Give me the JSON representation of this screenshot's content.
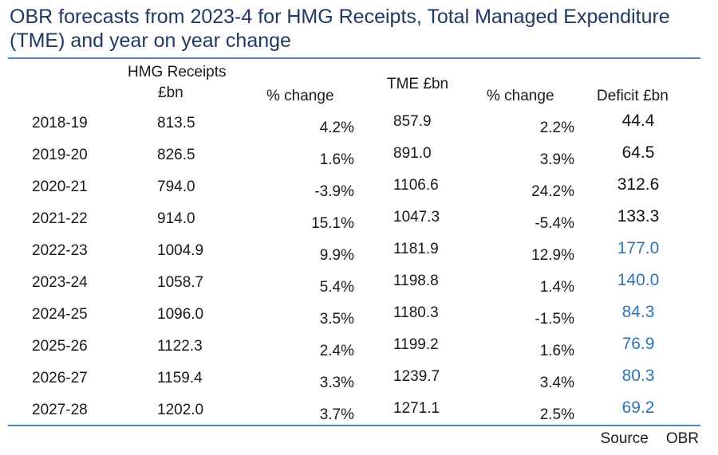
{
  "title": "OBR forecasts from 2023-4 for HMG Receipts, Total Managed Expenditure (TME) and year on year change",
  "headers": {
    "receipts_line1": "HMG Receipts",
    "receipts_line2": "£bn",
    "pct_change_1": "% change",
    "tme": "TME £bn",
    "pct_change_2": "% change",
    "deficit": "Deficit £bn"
  },
  "rows": [
    {
      "year": "2018-19",
      "receipts": "813.5",
      "receipts_change": "4.2%",
      "tme": "857.9",
      "tme_change": "2.2%",
      "deficit": "44.4",
      "status": "actual"
    },
    {
      "year": "2019-20",
      "receipts": "826.5",
      "receipts_change": "1.6%",
      "tme": "891.0",
      "tme_change": "3.9%",
      "deficit": "64.5",
      "status": "actual"
    },
    {
      "year": "2020-21",
      "receipts": "794.0",
      "receipts_change": "-3.9%",
      "tme": "1106.6",
      "tme_change": "24.2%",
      "deficit": "312.6",
      "status": "actual"
    },
    {
      "year": "2021-22",
      "receipts": "914.0",
      "receipts_change": "15.1%",
      "tme": "1047.3",
      "tme_change": "-5.4%",
      "deficit": "133.3",
      "status": "actual"
    },
    {
      "year": "2022-23",
      "receipts": "1004.9",
      "receipts_change": "9.9%",
      "tme": "1181.9",
      "tme_change": "12.9%",
      "deficit": "177.0",
      "status": "forecast"
    },
    {
      "year": "2023-24",
      "receipts": "1058.7",
      "receipts_change": "5.4%",
      "tme": "1198.8",
      "tme_change": "1.4%",
      "deficit": "140.0",
      "status": "forecast"
    },
    {
      "year": "2024-25",
      "receipts": "1096.0",
      "receipts_change": "3.5%",
      "tme": "1180.3",
      "tme_change": "-1.5%",
      "deficit": "84.3",
      "status": "forecast"
    },
    {
      "year": "2025-26",
      "receipts": "1122.3",
      "receipts_change": "2.4%",
      "tme": "1199.2",
      "tme_change": "1.6%",
      "deficit": "76.9",
      "status": "forecast"
    },
    {
      "year": "2026-27",
      "receipts": "1159.4",
      "receipts_change": "3.3%",
      "tme": "1239.7",
      "tme_change": "3.4%",
      "deficit": "80.3",
      "status": "forecast"
    },
    {
      "year": "2027-28",
      "receipts": "1202.0",
      "receipts_change": "3.7%",
      "tme": "1271.1",
      "tme_change": "2.5%",
      "deficit": "69.2",
      "status": "forecast"
    }
  ],
  "source": {
    "label": "Source",
    "value": "OBR"
  },
  "colors": {
    "title": "#1f3864",
    "rule": "#4f86c6",
    "forecast_deficit": "#2e75b6",
    "actual_deficit": "#111111"
  }
}
